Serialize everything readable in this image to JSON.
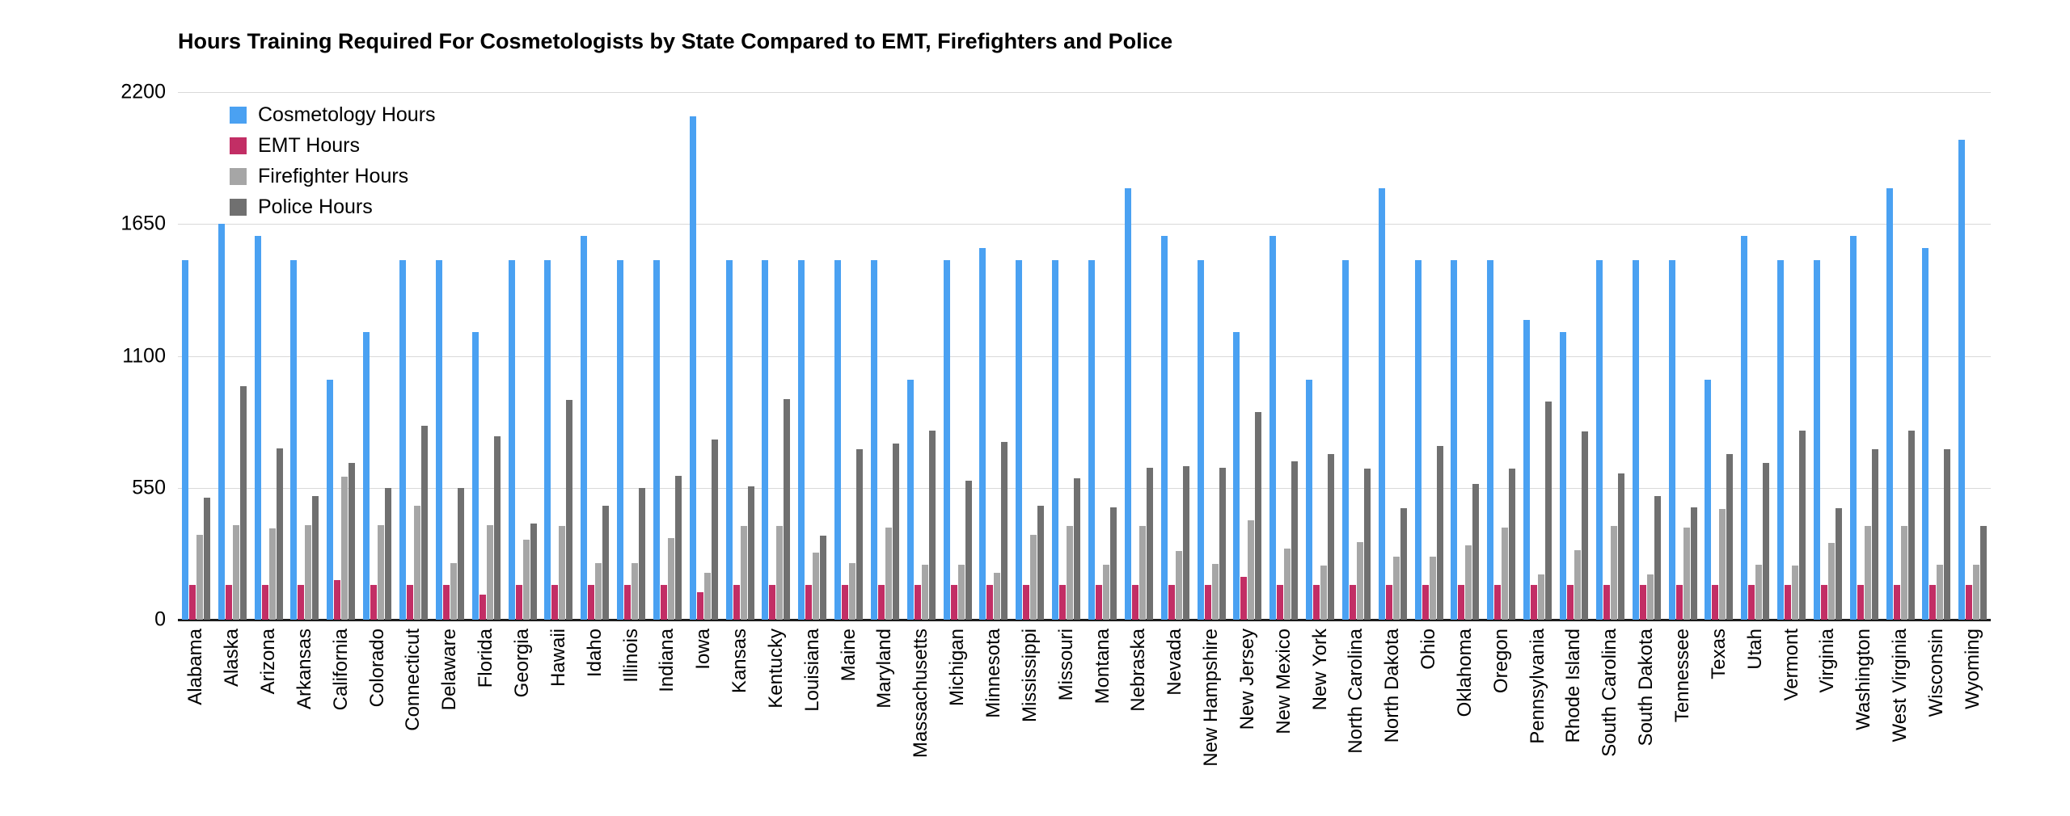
{
  "chart_data": {
    "type": "bar",
    "title": "Hours Training Required For Cosmetologists by State Compared to EMT, Firefighters and Police",
    "xlabel": "",
    "ylabel": "",
    "ylim": [
      0,
      2200
    ],
    "yticks": [
      0,
      550,
      1100,
      1650,
      2200
    ],
    "grid": true,
    "legend_position": "top-left-inside",
    "categories": [
      "Alabama",
      "Alaska",
      "Arizona",
      "Arkansas",
      "California",
      "Colorado",
      "Connecticut",
      "Delaware",
      "Florida",
      "Georgia",
      "Hawaii",
      "Idaho",
      "Illinois",
      "Indiana",
      "Iowa",
      "Kansas",
      "Kentucky",
      "Louisiana",
      "Maine",
      "Maryland",
      "Massachusetts",
      "Michigan",
      "Minnesota",
      "Mississippi",
      "Missouri",
      "Montana",
      "Nebraska",
      "Nevada",
      "New Hampshire",
      "New Jersey",
      "New Mexico",
      "New York",
      "North Carolina",
      "North Dakota",
      "Ohio",
      "Oklahoma",
      "Oregon",
      "Pennsylvania",
      "Rhode Island",
      "South Carolina",
      "South Dakota",
      "Tennessee",
      "Texas",
      "Utah",
      "Vermont",
      "Virginia",
      "Washington",
      "West Virginia",
      "Wisconsin",
      "Wyoming"
    ],
    "series": [
      {
        "name": "Cosmetology Hours",
        "color": "#4aa1f2",
        "values": [
          1500,
          1650,
          1600,
          1500,
          1000,
          1200,
          1500,
          1500,
          1200,
          1500,
          1500,
          1600,
          1500,
          1500,
          2100,
          1500,
          1500,
          1500,
          1500,
          1500,
          1000,
          1500,
          1550,
          1500,
          1500,
          1500,
          1800,
          1600,
          1500,
          1200,
          1600,
          1000,
          1500,
          1800,
          1500,
          1500,
          1500,
          1250,
          1200,
          1500,
          1500,
          1500,
          1000,
          1600,
          1500,
          1500,
          1600,
          1800,
          1550,
          2000
        ]
      },
      {
        "name": "EMT Hours",
        "color": "#c22e65",
        "values": [
          145,
          145,
          145,
          145,
          165,
          145,
          145,
          145,
          105,
          145,
          145,
          145,
          145,
          145,
          115,
          145,
          145,
          145,
          145,
          145,
          145,
          145,
          145,
          145,
          145,
          145,
          145,
          145,
          145,
          180,
          145,
          145,
          145,
          145,
          145,
          145,
          145,
          145,
          145,
          145,
          145,
          145,
          145,
          145,
          145,
          145,
          145,
          145,
          145,
          145
        ]
      },
      {
        "name": "Firefighter Hours",
        "color": "#a6a6a6",
        "values": [
          355,
          395,
          380,
          395,
          595,
          395,
          475,
          235,
          395,
          335,
          390,
          235,
          235,
          340,
          195,
          390,
          390,
          280,
          235,
          385,
          230,
          230,
          195,
          355,
          390,
          230,
          390,
          285,
          233,
          415,
          295,
          225,
          323,
          263,
          263,
          310,
          385,
          190,
          290,
          390,
          190,
          385,
          460,
          230,
          225,
          320,
          390,
          390,
          230,
          230
        ]
      },
      {
        "name": "Police Hours",
        "color": "#707070",
        "values": [
          510,
          975,
          715,
          515,
          655,
          550,
          810,
          550,
          765,
          400,
          915,
          475,
          550,
          600,
          750,
          555,
          920,
          350,
          710,
          735,
          790,
          580,
          740,
          475,
          590,
          470,
          635,
          640,
          635,
          865,
          660,
          690,
          630,
          465,
          725,
          565,
          630,
          910,
          785,
          610,
          515,
          470,
          690,
          655,
          790,
          465,
          710,
          790,
          710,
          390
        ]
      }
    ]
  }
}
